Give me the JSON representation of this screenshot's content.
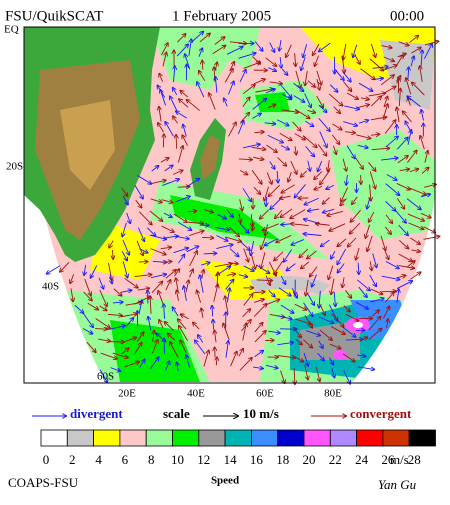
{
  "header": {
    "title": "FSU/QuikSCAT",
    "date": "1 February 2005",
    "time": "00:00"
  },
  "map": {
    "lat_labels": [
      "EQ",
      "20S",
      "40S",
      "60S"
    ],
    "lon_labels": [
      "20E",
      "40E",
      "60E",
      "80E"
    ]
  },
  "legend": {
    "divergent": "divergent",
    "scale": "scale",
    "scale_value": "10 m/s",
    "convergent": "convergent"
  },
  "colorbar": {
    "title": "Speed",
    "unit": "m/s",
    "ticks": [
      0,
      2,
      4,
      6,
      8,
      10,
      12,
      14,
      16,
      18,
      20,
      22,
      24,
      26,
      28
    ],
    "colors": [
      "#ffffff",
      "#c8c8c8",
      "#ffff00",
      "#ffc8c8",
      "#98fb98",
      "#00ee00",
      "#999999",
      "#00b4b4",
      "#3a8eff",
      "#0000cc",
      "#ff55ff",
      "#b088ff",
      "#ff0000",
      "#cc3300",
      "#000000"
    ]
  },
  "footer": {
    "left": "COAPS-FSU",
    "right": "Yan Gu"
  }
}
